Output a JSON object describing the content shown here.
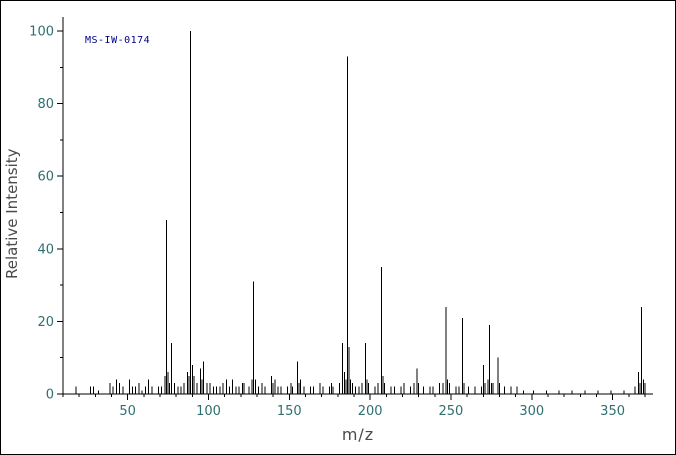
{
  "page": {
    "background": "#ffffff",
    "border_color": "#000000"
  },
  "chart_data": {
    "type": "bar",
    "subtype": "mass-spectrum",
    "title": "",
    "annotation": "MS-IW-0174",
    "xlabel": "m/z",
    "ylabel": "Relative Intensity",
    "xlim": [
      10,
      375
    ],
    "ylim": [
      0,
      103
    ],
    "x_ticks": [
      50,
      100,
      150,
      200,
      250,
      300,
      350
    ],
    "y_ticks": [
      0,
      20,
      40,
      60,
      80,
      100
    ],
    "x_minor_step": 10,
    "y_minor_step": 10,
    "grid": false,
    "legend": false,
    "colors": {
      "peak": "#000000",
      "axis": "#000000",
      "tick_label": "#2f6f6f",
      "axis_label": "#4a4a4a",
      "annotation": "#00008b"
    },
    "peaks": [
      [
        18,
        2
      ],
      [
        27,
        2
      ],
      [
        29,
        2
      ],
      [
        32,
        1
      ],
      [
        39,
        3
      ],
      [
        41,
        2
      ],
      [
        43,
        4
      ],
      [
        45,
        3
      ],
      [
        47,
        2
      ],
      [
        51,
        4
      ],
      [
        53,
        2
      ],
      [
        55,
        2
      ],
      [
        57,
        3
      ],
      [
        59,
        1
      ],
      [
        61,
        2
      ],
      [
        63,
        4
      ],
      [
        65,
        2
      ],
      [
        69,
        2
      ],
      [
        71,
        2
      ],
      [
        73,
        5
      ],
      [
        74,
        48
      ],
      [
        75,
        6
      ],
      [
        76,
        3
      ],
      [
        77,
        14
      ],
      [
        79,
        3
      ],
      [
        81,
        2
      ],
      [
        83,
        2
      ],
      [
        85,
        3
      ],
      [
        87,
        6
      ],
      [
        88,
        5
      ],
      [
        89,
        100
      ],
      [
        90,
        8
      ],
      [
        91,
        5
      ],
      [
        93,
        3
      ],
      [
        95,
        7
      ],
      [
        96,
        4
      ],
      [
        97,
        9
      ],
      [
        99,
        3
      ],
      [
        101,
        3
      ],
      [
        103,
        2
      ],
      [
        105,
        2
      ],
      [
        107,
        2
      ],
      [
        109,
        3
      ],
      [
        111,
        4
      ],
      [
        113,
        2
      ],
      [
        115,
        4
      ],
      [
        117,
        2
      ],
      [
        119,
        2
      ],
      [
        121,
        3
      ],
      [
        122,
        3
      ],
      [
        125,
        2
      ],
      [
        127,
        4
      ],
      [
        128,
        31
      ],
      [
        129,
        4
      ],
      [
        131,
        2
      ],
      [
        133,
        3
      ],
      [
        135,
        2
      ],
      [
        139,
        5
      ],
      [
        140,
        3
      ],
      [
        141,
        4
      ],
      [
        143,
        2
      ],
      [
        145,
        2
      ],
      [
        149,
        2
      ],
      [
        151,
        3
      ],
      [
        152,
        2
      ],
      [
        155,
        9
      ],
      [
        156,
        3
      ],
      [
        157,
        4
      ],
      [
        159,
        2
      ],
      [
        163,
        2
      ],
      [
        165,
        2
      ],
      [
        169,
        3
      ],
      [
        171,
        2
      ],
      [
        175,
        2
      ],
      [
        176,
        3
      ],
      [
        177,
        2
      ],
      [
        181,
        3
      ],
      [
        183,
        14
      ],
      [
        184,
        6
      ],
      [
        185,
        4
      ],
      [
        186,
        93
      ],
      [
        187,
        13
      ],
      [
        188,
        4
      ],
      [
        189,
        3
      ],
      [
        191,
        2
      ],
      [
        193,
        2
      ],
      [
        195,
        3
      ],
      [
        197,
        14
      ],
      [
        198,
        4
      ],
      [
        199,
        3
      ],
      [
        203,
        2
      ],
      [
        205,
        3
      ],
      [
        207,
        35
      ],
      [
        208,
        5
      ],
      [
        209,
        3
      ],
      [
        213,
        2
      ],
      [
        215,
        2
      ],
      [
        219,
        2
      ],
      [
        221,
        3
      ],
      [
        225,
        2
      ],
      [
        227,
        3
      ],
      [
        229,
        7
      ],
      [
        230,
        3
      ],
      [
        233,
        2
      ],
      [
        237,
        2
      ],
      [
        239,
        2
      ],
      [
        243,
        3
      ],
      [
        245,
        3
      ],
      [
        247,
        24
      ],
      [
        248,
        4
      ],
      [
        249,
        3
      ],
      [
        253,
        2
      ],
      [
        255,
        2
      ],
      [
        257,
        21
      ],
      [
        258,
        3
      ],
      [
        261,
        2
      ],
      [
        265,
        2
      ],
      [
        269,
        2
      ],
      [
        270,
        8
      ],
      [
        271,
        3
      ],
      [
        273,
        4
      ],
      [
        274,
        19
      ],
      [
        275,
        3
      ],
      [
        276,
        3
      ],
      [
        279,
        10
      ],
      [
        280,
        3
      ],
      [
        283,
        2
      ],
      [
        287,
        2
      ],
      [
        291,
        2
      ],
      [
        295,
        1
      ],
      [
        301,
        1
      ],
      [
        309,
        1
      ],
      [
        317,
        1
      ],
      [
        325,
        1
      ],
      [
        333,
        1
      ],
      [
        341,
        1
      ],
      [
        349,
        1
      ],
      [
        357,
        1
      ],
      [
        364,
        2
      ],
      [
        366,
        6
      ],
      [
        367,
        3
      ],
      [
        368,
        24
      ],
      [
        369,
        4
      ],
      [
        370,
        3
      ]
    ]
  }
}
